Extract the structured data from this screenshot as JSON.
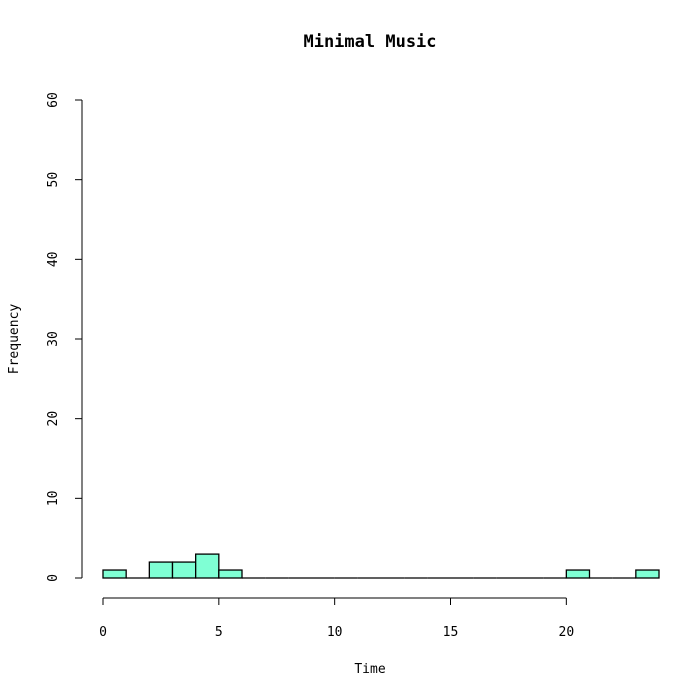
{
  "chart_data": {
    "type": "bar",
    "title": "Minimal Music",
    "xlabel": "Time",
    "ylabel": "Frequency",
    "bin_width": 1,
    "bins": [
      {
        "x0": 0,
        "x1": 1,
        "count": 1
      },
      {
        "x0": 1,
        "x1": 2,
        "count": 0
      },
      {
        "x0": 2,
        "x1": 3,
        "count": 2
      },
      {
        "x0": 3,
        "x1": 4,
        "count": 2
      },
      {
        "x0": 4,
        "x1": 5,
        "count": 3
      },
      {
        "x0": 5,
        "x1": 6,
        "count": 1
      },
      {
        "x0": 6,
        "x1": 7,
        "count": 0
      },
      {
        "x0": 7,
        "x1": 8,
        "count": 0
      },
      {
        "x0": 8,
        "x1": 9,
        "count": 0
      },
      {
        "x0": 9,
        "x1": 10,
        "count": 0
      },
      {
        "x0": 10,
        "x1": 11,
        "count": 0
      },
      {
        "x0": 11,
        "x1": 12,
        "count": 0
      },
      {
        "x0": 12,
        "x1": 13,
        "count": 0
      },
      {
        "x0": 13,
        "x1": 14,
        "count": 0
      },
      {
        "x0": 14,
        "x1": 15,
        "count": 0
      },
      {
        "x0": 15,
        "x1": 16,
        "count": 0
      },
      {
        "x0": 16,
        "x1": 17,
        "count": 0
      },
      {
        "x0": 17,
        "x1": 18,
        "count": 0
      },
      {
        "x0": 18,
        "x1": 19,
        "count": 0
      },
      {
        "x0": 19,
        "x1": 20,
        "count": 0
      },
      {
        "x0": 20,
        "x1": 21,
        "count": 1
      },
      {
        "x0": 21,
        "x1": 22,
        "count": 0
      },
      {
        "x0": 22,
        "x1": 23,
        "count": 0
      },
      {
        "x0": 23,
        "x1": 24,
        "count": 1
      }
    ],
    "xlim": [
      0,
      24
    ],
    "ylim": [
      0,
      60
    ],
    "xticks": [
      0,
      5,
      10,
      15,
      20
    ],
    "yticks": [
      0,
      10,
      20,
      30,
      40,
      50,
      60
    ],
    "bar_color": "#7fffd4",
    "bar_border_color": "#000000",
    "grid": false
  }
}
